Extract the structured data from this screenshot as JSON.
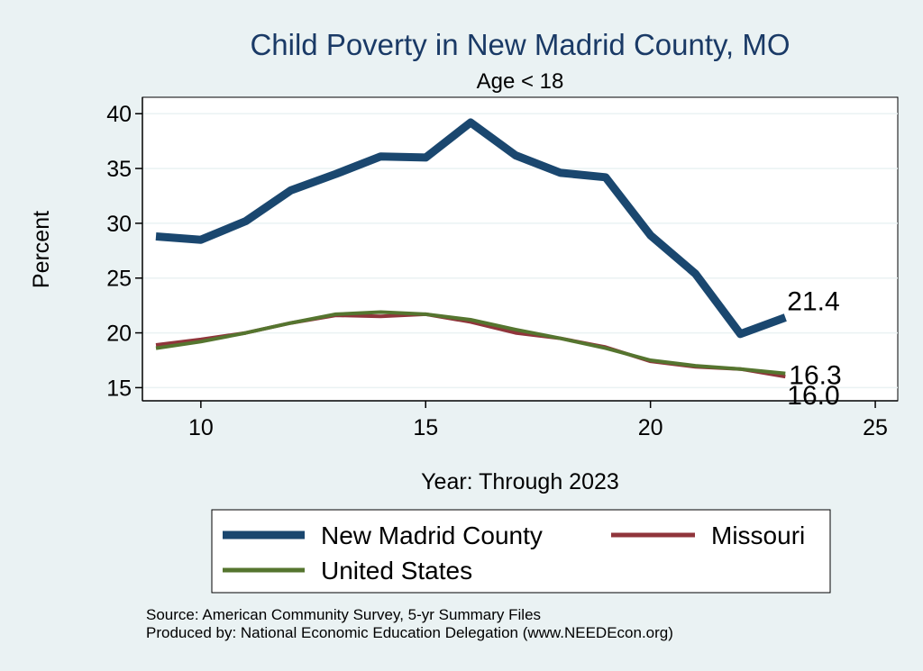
{
  "chart_data": {
    "type": "line",
    "title": "Child Poverty in New Madrid County, MO",
    "subtitle": "Age < 18",
    "xlabel": "Year: Through 2023",
    "ylabel": "Percent",
    "xlim": [
      8.7,
      25.5
    ],
    "ylim": [
      13.8,
      41.5
    ],
    "xticks": [
      10,
      15,
      20,
      25
    ],
    "yticks": [
      15,
      20,
      25,
      30,
      35,
      40
    ],
    "x": [
      9,
      10,
      11,
      12,
      13,
      14,
      15,
      16,
      17,
      18,
      19,
      20,
      21,
      22,
      23
    ],
    "series": [
      {
        "name": "New Madrid County",
        "color": "#1a476f",
        "width": "thick",
        "values": [
          28.8,
          28.5,
          30.2,
          33.0,
          34.5,
          36.1,
          36.0,
          39.2,
          36.2,
          34.6,
          34.2,
          28.9,
          25.4,
          19.9,
          21.4
        ],
        "end_label": "21.4"
      },
      {
        "name": "Missouri",
        "color": "#90353b",
        "width": "medium",
        "values": [
          18.9,
          19.4,
          20.0,
          20.9,
          21.6,
          21.5,
          21.7,
          21.0,
          20.0,
          19.5,
          18.7,
          17.4,
          16.9,
          16.7,
          16.0
        ],
        "end_label": "16.0"
      },
      {
        "name": "United States",
        "color": "#55752f",
        "width": "medium",
        "values": [
          18.6,
          19.2,
          20.0,
          20.9,
          21.7,
          21.9,
          21.7,
          21.2,
          20.3,
          19.5,
          18.6,
          17.5,
          17.0,
          16.7,
          16.3
        ],
        "end_label": "16.3"
      }
    ],
    "legend": {
      "placement": "bottom",
      "entries": [
        "New Madrid County",
        "Missouri",
        "United States"
      ]
    },
    "grid": true
  },
  "footer": {
    "source": "Source: American Community Survey, 5-yr Summary Files",
    "produced_by": "Produced by: National Economic Education Delegation (www.NEEDEcon.org)"
  }
}
